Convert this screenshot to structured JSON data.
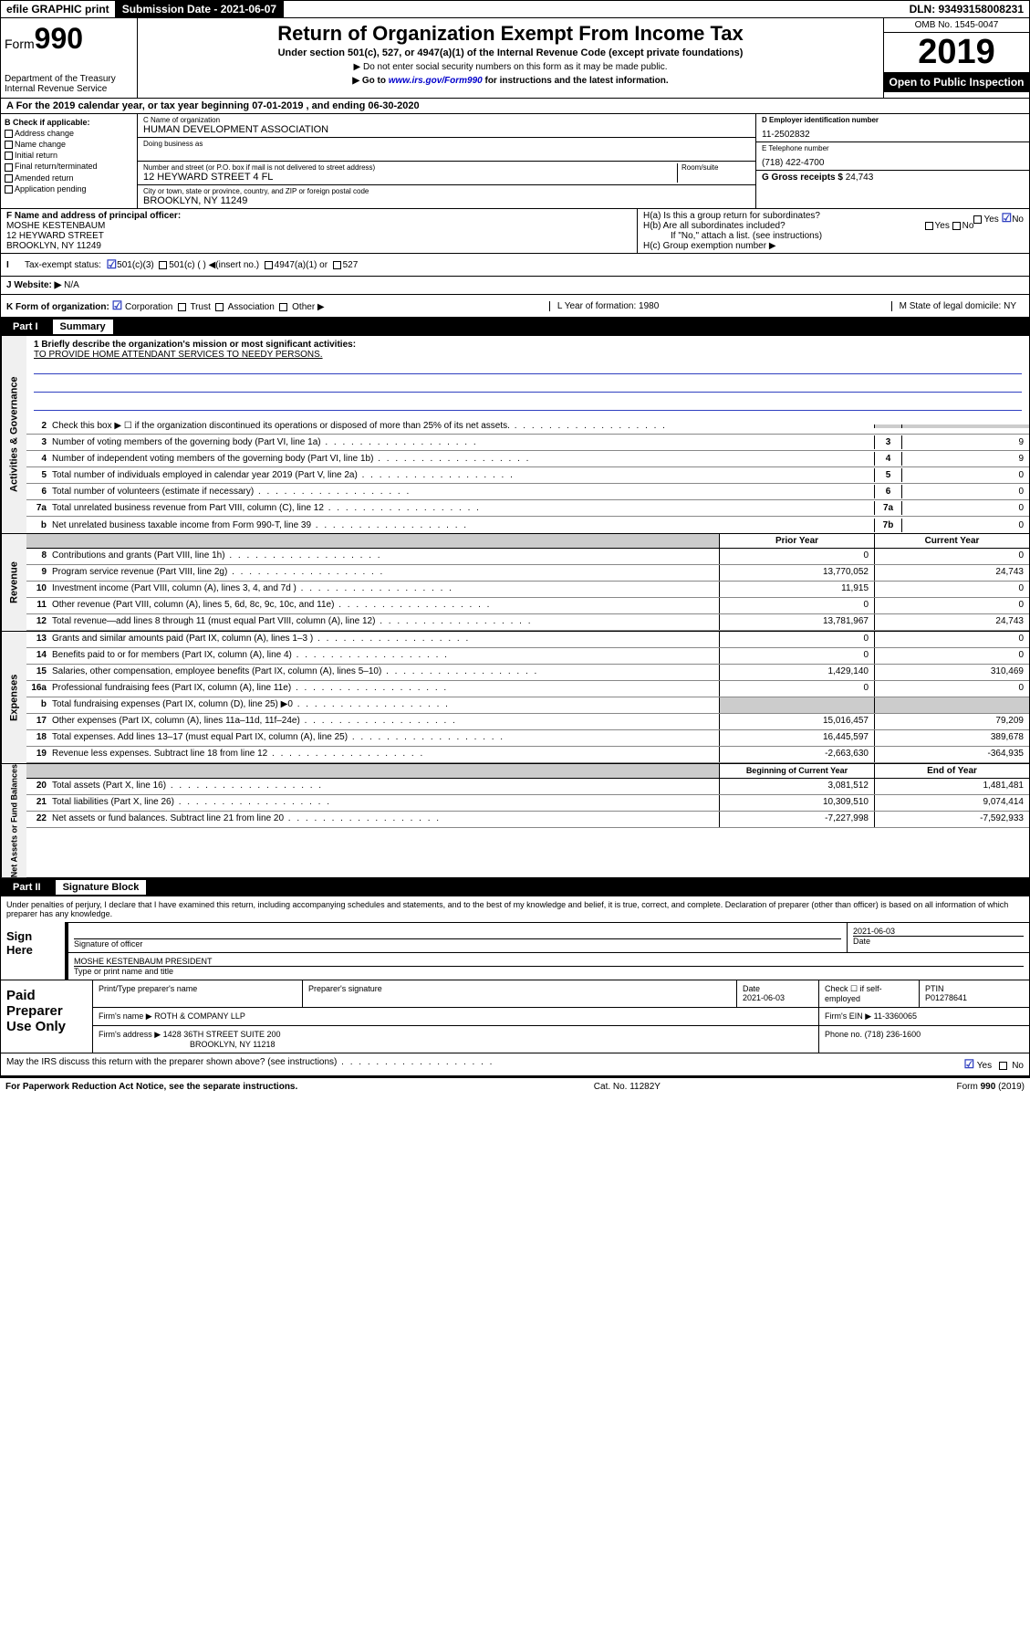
{
  "topbar": {
    "efile": "efile GRAPHIC print",
    "sub_label": "Submission Date - 2021-06-07",
    "dln": "DLN: 93493158008231"
  },
  "header": {
    "form_prefix": "Form",
    "form_num": "990",
    "dept": "Department of the Treasury\nInternal Revenue Service",
    "title": "Return of Organization Exempt From Income Tax",
    "subtitle": "Under section 501(c), 527, or 4947(a)(1) of the Internal Revenue Code (except private foundations)",
    "note1": "▶ Do not enter social security numbers on this form as it may be made public.",
    "note2_pre": "▶ Go to ",
    "note2_link": "www.irs.gov/Form990",
    "note2_post": " for instructions and the latest information.",
    "omb": "OMB No. 1545-0047",
    "year": "2019",
    "open": "Open to Public Inspection"
  },
  "period": "A For the 2019 calendar year, or tax year beginning 07-01-2019   , and ending 06-30-2020",
  "boxB": {
    "head": "B Check if applicable:",
    "opts": [
      "Address change",
      "Name change",
      "Initial return",
      "Final return/terminated",
      "Amended return",
      "Application pending"
    ]
  },
  "boxC": {
    "name_label": "C Name of organization",
    "name": "HUMAN DEVELOPMENT ASSOCIATION",
    "dba_label": "Doing business as",
    "addr_label": "Number and street (or P.O. box if mail is not delivered to street address)",
    "room_label": "Room/suite",
    "addr": "12 HEYWARD STREET 4 FL",
    "city_label": "City or town, state or province, country, and ZIP or foreign postal code",
    "city": "BROOKLYN, NY  11249"
  },
  "boxD": {
    "label": "D Employer identification number",
    "val": "11-2502832"
  },
  "boxE": {
    "label": "E Telephone number",
    "val": "(718) 422-4700"
  },
  "boxG": {
    "label": "G Gross receipts $",
    "val": "24,743"
  },
  "boxF": {
    "label": "F  Name and address of principal officer:",
    "name": "MOSHE KESTENBAUM",
    "addr1": "12 HEYWARD STREET",
    "addr2": "BROOKLYN, NY  11249"
  },
  "boxH": {
    "a": "H(a)  Is this a group return for subordinates?",
    "a_yes": "Yes",
    "a_no": "No",
    "b": "H(b)  Are all subordinates included?",
    "b_note": "If \"No,\" attach a list. (see instructions)",
    "c": "H(c)  Group exemption number ▶"
  },
  "taxStatus": {
    "label": "Tax-exempt status:",
    "o1": "501(c)(3)",
    "o2": "501(c) (  ) ◀(insert no.)",
    "o3": "4947(a)(1) or",
    "o4": "527"
  },
  "website": {
    "label": "J   Website: ▶",
    "val": "N/A"
  },
  "korg": {
    "k": "K Form of organization:",
    "opts": [
      "Corporation",
      "Trust",
      "Association",
      "Other ▶"
    ],
    "l": "L Year of formation: 1980",
    "m": "M State of legal domicile: NY"
  },
  "part1": {
    "num": "Part I",
    "title": "Summary"
  },
  "mission": {
    "q": "1  Briefly describe the organization's mission or most significant activities:",
    "a": "TO PROVIDE HOME ATTENDANT SERVICES TO NEEDY PERSONS."
  },
  "govLines": [
    {
      "n": "2",
      "d": "Check this box ▶ ☐  if the organization discontinued its operations or disposed of more than 25% of its net assets.",
      "b": "",
      "v": ""
    },
    {
      "n": "3",
      "d": "Number of voting members of the governing body (Part VI, line 1a)",
      "b": "3",
      "v": "9"
    },
    {
      "n": "4",
      "d": "Number of independent voting members of the governing body (Part VI, line 1b)",
      "b": "4",
      "v": "9"
    },
    {
      "n": "5",
      "d": "Total number of individuals employed in calendar year 2019 (Part V, line 2a)",
      "b": "5",
      "v": "0"
    },
    {
      "n": "6",
      "d": "Total number of volunteers (estimate if necessary)",
      "b": "6",
      "v": "0"
    },
    {
      "n": "7a",
      "d": "Total unrelated business revenue from Part VIII, column (C), line 12",
      "b": "7a",
      "v": "0"
    },
    {
      "n": "b",
      "d": "Net unrelated business taxable income from Form 990-T, line 39",
      "b": "7b",
      "v": "0"
    }
  ],
  "colHead": {
    "prior": "Prior Year",
    "current": "Current Year"
  },
  "revLines": [
    {
      "n": "8",
      "d": "Contributions and grants (Part VIII, line 1h)",
      "p": "0",
      "c": "0"
    },
    {
      "n": "9",
      "d": "Program service revenue (Part VIII, line 2g)",
      "p": "13,770,052",
      "c": "24,743"
    },
    {
      "n": "10",
      "d": "Investment income (Part VIII, column (A), lines 3, 4, and 7d )",
      "p": "11,915",
      "c": "0"
    },
    {
      "n": "11",
      "d": "Other revenue (Part VIII, column (A), lines 5, 6d, 8c, 9c, 10c, and 11e)",
      "p": "0",
      "c": "0"
    },
    {
      "n": "12",
      "d": "Total revenue—add lines 8 through 11 (must equal Part VIII, column (A), line 12)",
      "p": "13,781,967",
      "c": "24,743"
    }
  ],
  "expLines": [
    {
      "n": "13",
      "d": "Grants and similar amounts paid (Part IX, column (A), lines 1–3 )",
      "p": "0",
      "c": "0"
    },
    {
      "n": "14",
      "d": "Benefits paid to or for members (Part IX, column (A), line 4)",
      "p": "0",
      "c": "0"
    },
    {
      "n": "15",
      "d": "Salaries, other compensation, employee benefits (Part IX, column (A), lines 5–10)",
      "p": "1,429,140",
      "c": "310,469"
    },
    {
      "n": "16a",
      "d": "Professional fundraising fees (Part IX, column (A), line 11e)",
      "p": "0",
      "c": "0"
    },
    {
      "n": "b",
      "d": "Total fundraising expenses (Part IX, column (D), line 25) ▶0",
      "p": "",
      "c": ""
    },
    {
      "n": "17",
      "d": "Other expenses (Part IX, column (A), lines 11a–11d, 11f–24e)",
      "p": "15,016,457",
      "c": "79,209"
    },
    {
      "n": "18",
      "d": "Total expenses. Add lines 13–17 (must equal Part IX, column (A), line 25)",
      "p": "16,445,597",
      "c": "389,678"
    },
    {
      "n": "19",
      "d": "Revenue less expenses. Subtract line 18 from line 12",
      "p": "-2,663,630",
      "c": "-364,935"
    }
  ],
  "balHead": {
    "begin": "Beginning of Current Year",
    "end": "End of Year"
  },
  "balLines": [
    {
      "n": "20",
      "d": "Total assets (Part X, line 16)",
      "p": "3,081,512",
      "c": "1,481,481"
    },
    {
      "n": "21",
      "d": "Total liabilities (Part X, line 26)",
      "p": "10,309,510",
      "c": "9,074,414"
    },
    {
      "n": "22",
      "d": "Net assets or fund balances. Subtract line 21 from line 20",
      "p": "-7,227,998",
      "c": "-7,592,933"
    }
  ],
  "sideLabels": {
    "gov": "Activities & Governance",
    "rev": "Revenue",
    "exp": "Expenses",
    "bal": "Net Assets or Fund Balances"
  },
  "part2": {
    "num": "Part II",
    "title": "Signature Block"
  },
  "sigText": "Under penalties of perjury, I declare that I have examined this return, including accompanying schedules and statements, and to the best of my knowledge and belief, it is true, correct, and complete. Declaration of preparer (other than officer) is based on all information of which preparer has any knowledge.",
  "sign": {
    "here": "Sign Here",
    "sig_label": "Signature of officer",
    "date": "2021-06-03",
    "date_label": "Date",
    "name": "MOSHE KESTENBAUM  PRESIDENT",
    "name_label": "Type or print name and title"
  },
  "prep": {
    "title": "Paid Preparer Use Only",
    "h1": "Print/Type preparer's name",
    "h2": "Preparer's signature",
    "h3": "Date",
    "h4": "Check ☐ if self-employed",
    "h5": "PTIN",
    "date": "2021-06-03",
    "ptin": "P01278641",
    "firm_label": "Firm's name   ▶",
    "firm": "ROTH & COMPANY LLP",
    "ein_label": "Firm's EIN ▶",
    "ein": "11-3360065",
    "addr_label": "Firm's address ▶",
    "addr1": "1428 36TH STREET SUITE 200",
    "addr2": "BROOKLYN, NY  11218",
    "phone_label": "Phone no.",
    "phone": "(718) 236-1600"
  },
  "discuss": {
    "q": "May the IRS discuss this return with the preparer shown above? (see instructions)",
    "yes": "Yes",
    "no": "No"
  },
  "footer": {
    "left": "For Paperwork Reduction Act Notice, see the separate instructions.",
    "mid": "Cat. No. 11282Y",
    "right": "Form 990 (2019)"
  }
}
